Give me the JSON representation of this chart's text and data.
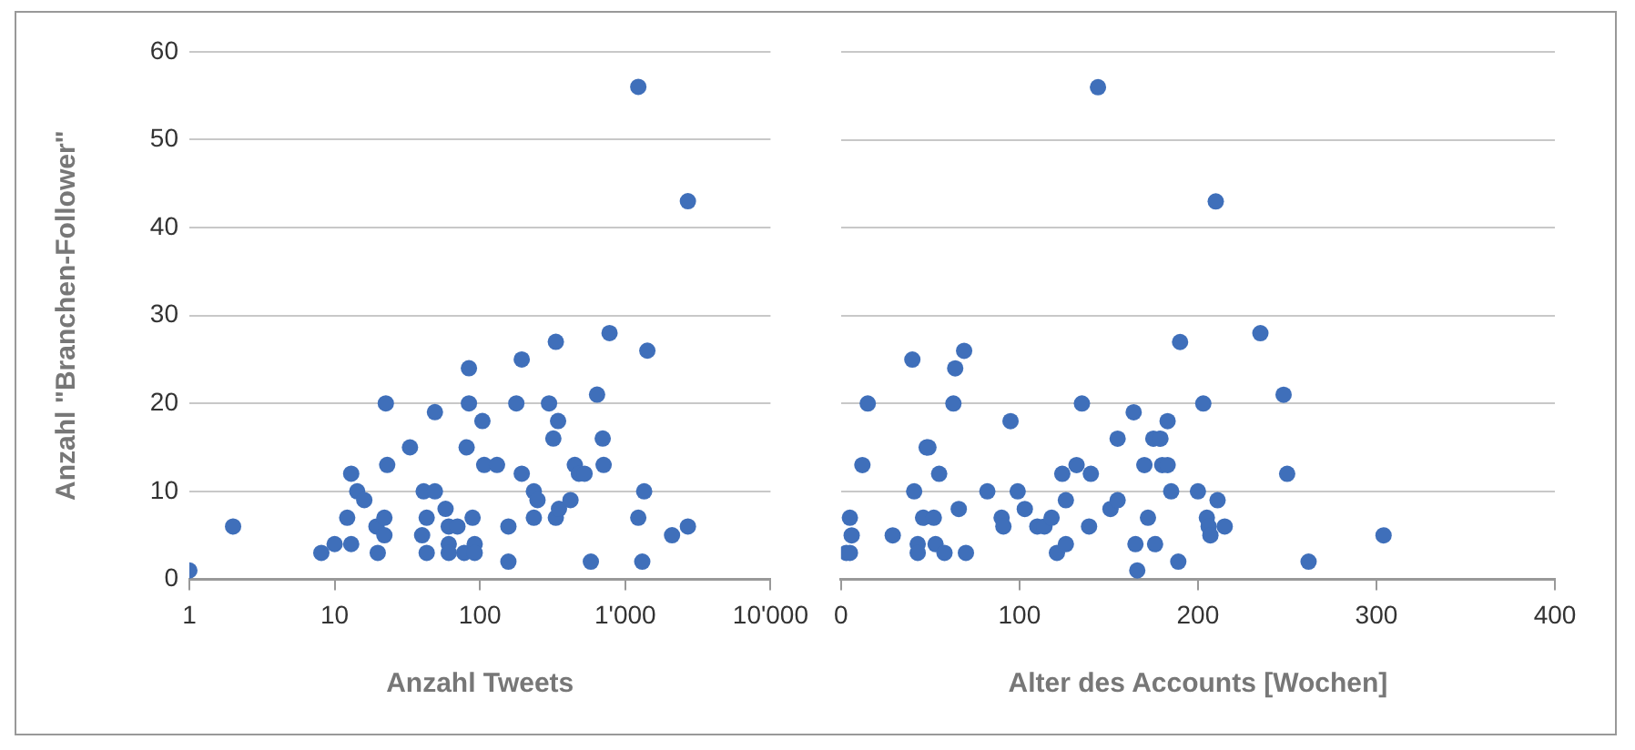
{
  "chart_data": [
    {
      "type": "scatter",
      "xlabel": "Anzahl Tweets",
      "ylabel": "Anzahl \"Branchen-Follower\"",
      "log": "x",
      "grid": "y",
      "marker": "circle",
      "color": "#3f6fba",
      "xlim": [
        1,
        10000
      ],
      "xticks": [
        1,
        10,
        100,
        {
          "value": 1000,
          "label": "1'000"
        },
        {
          "value": 10000,
          "label": "10'000"
        }
      ],
      "ylim": [
        0,
        60
      ],
      "yticks": [
        0,
        10,
        20,
        30,
        40,
        50,
        60
      ],
      "x": [
        1,
        2,
        8.1,
        10,
        13,
        12.2,
        13,
        14.3,
        16,
        19.8,
        19.4,
        22,
        22,
        22.5,
        23,
        33,
        40,
        41,
        43,
        43,
        49,
        49,
        58,
        61,
        61,
        61,
        70,
        78,
        81,
        84,
        84,
        89,
        92,
        92,
        104,
        107,
        131,
        157,
        157,
        178,
        194,
        194,
        235,
        249,
        235,
        299,
        320,
        345,
        333,
        333,
        350,
        420,
        450,
        480,
        525,
        580,
        640,
        700,
        710,
        780,
        1230,
        1230,
        1310,
        1350,
        1420,
        2100,
        2700,
        2700
      ],
      "values": [
        1,
        6,
        3,
        4,
        4,
        7,
        12,
        10,
        9,
        3,
        6,
        7,
        5,
        20,
        13,
        15,
        5,
        10,
        7,
        3,
        19,
        10,
        8,
        6,
        4,
        3,
        6,
        3,
        15,
        24,
        20,
        7,
        4,
        3,
        18,
        13,
        13,
        6,
        2,
        20,
        12,
        25,
        10,
        9,
        7,
        20,
        16,
        18,
        27,
        7,
        8,
        9,
        13,
        12,
        12,
        2,
        21,
        16,
        13,
        28,
        56,
        7,
        2,
        10,
        26,
        5,
        6,
        43
      ]
    },
    {
      "type": "scatter",
      "xlabel": "Alter des Accounts [Wochen]",
      "grid": "y",
      "marker": "circle",
      "color": "#3f6fba",
      "tick_labels": "x",
      "xlim": [
        0,
        400
      ],
      "xticks": [
        0,
        100,
        200,
        300,
        400
      ],
      "ylim": [
        0,
        60
      ],
      "yticks": [
        0,
        10,
        20,
        30,
        40,
        50,
        60
      ],
      "x": [
        3,
        5,
        5,
        6,
        12,
        15,
        29,
        40,
        41,
        43,
        43,
        46,
        48,
        49,
        52,
        53,
        55,
        58,
        63,
        64,
        66,
        69,
        70,
        82,
        90,
        91,
        95,
        99,
        103,
        110,
        114,
        118,
        121,
        124,
        126,
        126,
        132,
        135,
        139,
        140,
        144,
        151,
        155,
        155,
        164,
        165,
        166,
        170,
        172,
        175,
        176,
        179,
        180,
        183,
        183,
        185,
        189,
        190,
        200,
        203,
        205,
        206,
        207,
        210,
        211,
        215,
        235,
        248,
        250,
        262,
        304
      ],
      "values": [
        3,
        3,
        7,
        5,
        13,
        20,
        5,
        25,
        10,
        4,
        3,
        7,
        15,
        15,
        7,
        4,
        12,
        3,
        20,
        24,
        8,
        26,
        3,
        10,
        7,
        6,
        18,
        10,
        8,
        6,
        6,
        7,
        3,
        12,
        9,
        4,
        13,
        20,
        6,
        12,
        56,
        8,
        9,
        16,
        19,
        4,
        1,
        13,
        7,
        16,
        4,
        16,
        13,
        13,
        18,
        10,
        2,
        27,
        10,
        20,
        7,
        6,
        5,
        43,
        9,
        6,
        28,
        21,
        12,
        2,
        5
      ]
    }
  ]
}
